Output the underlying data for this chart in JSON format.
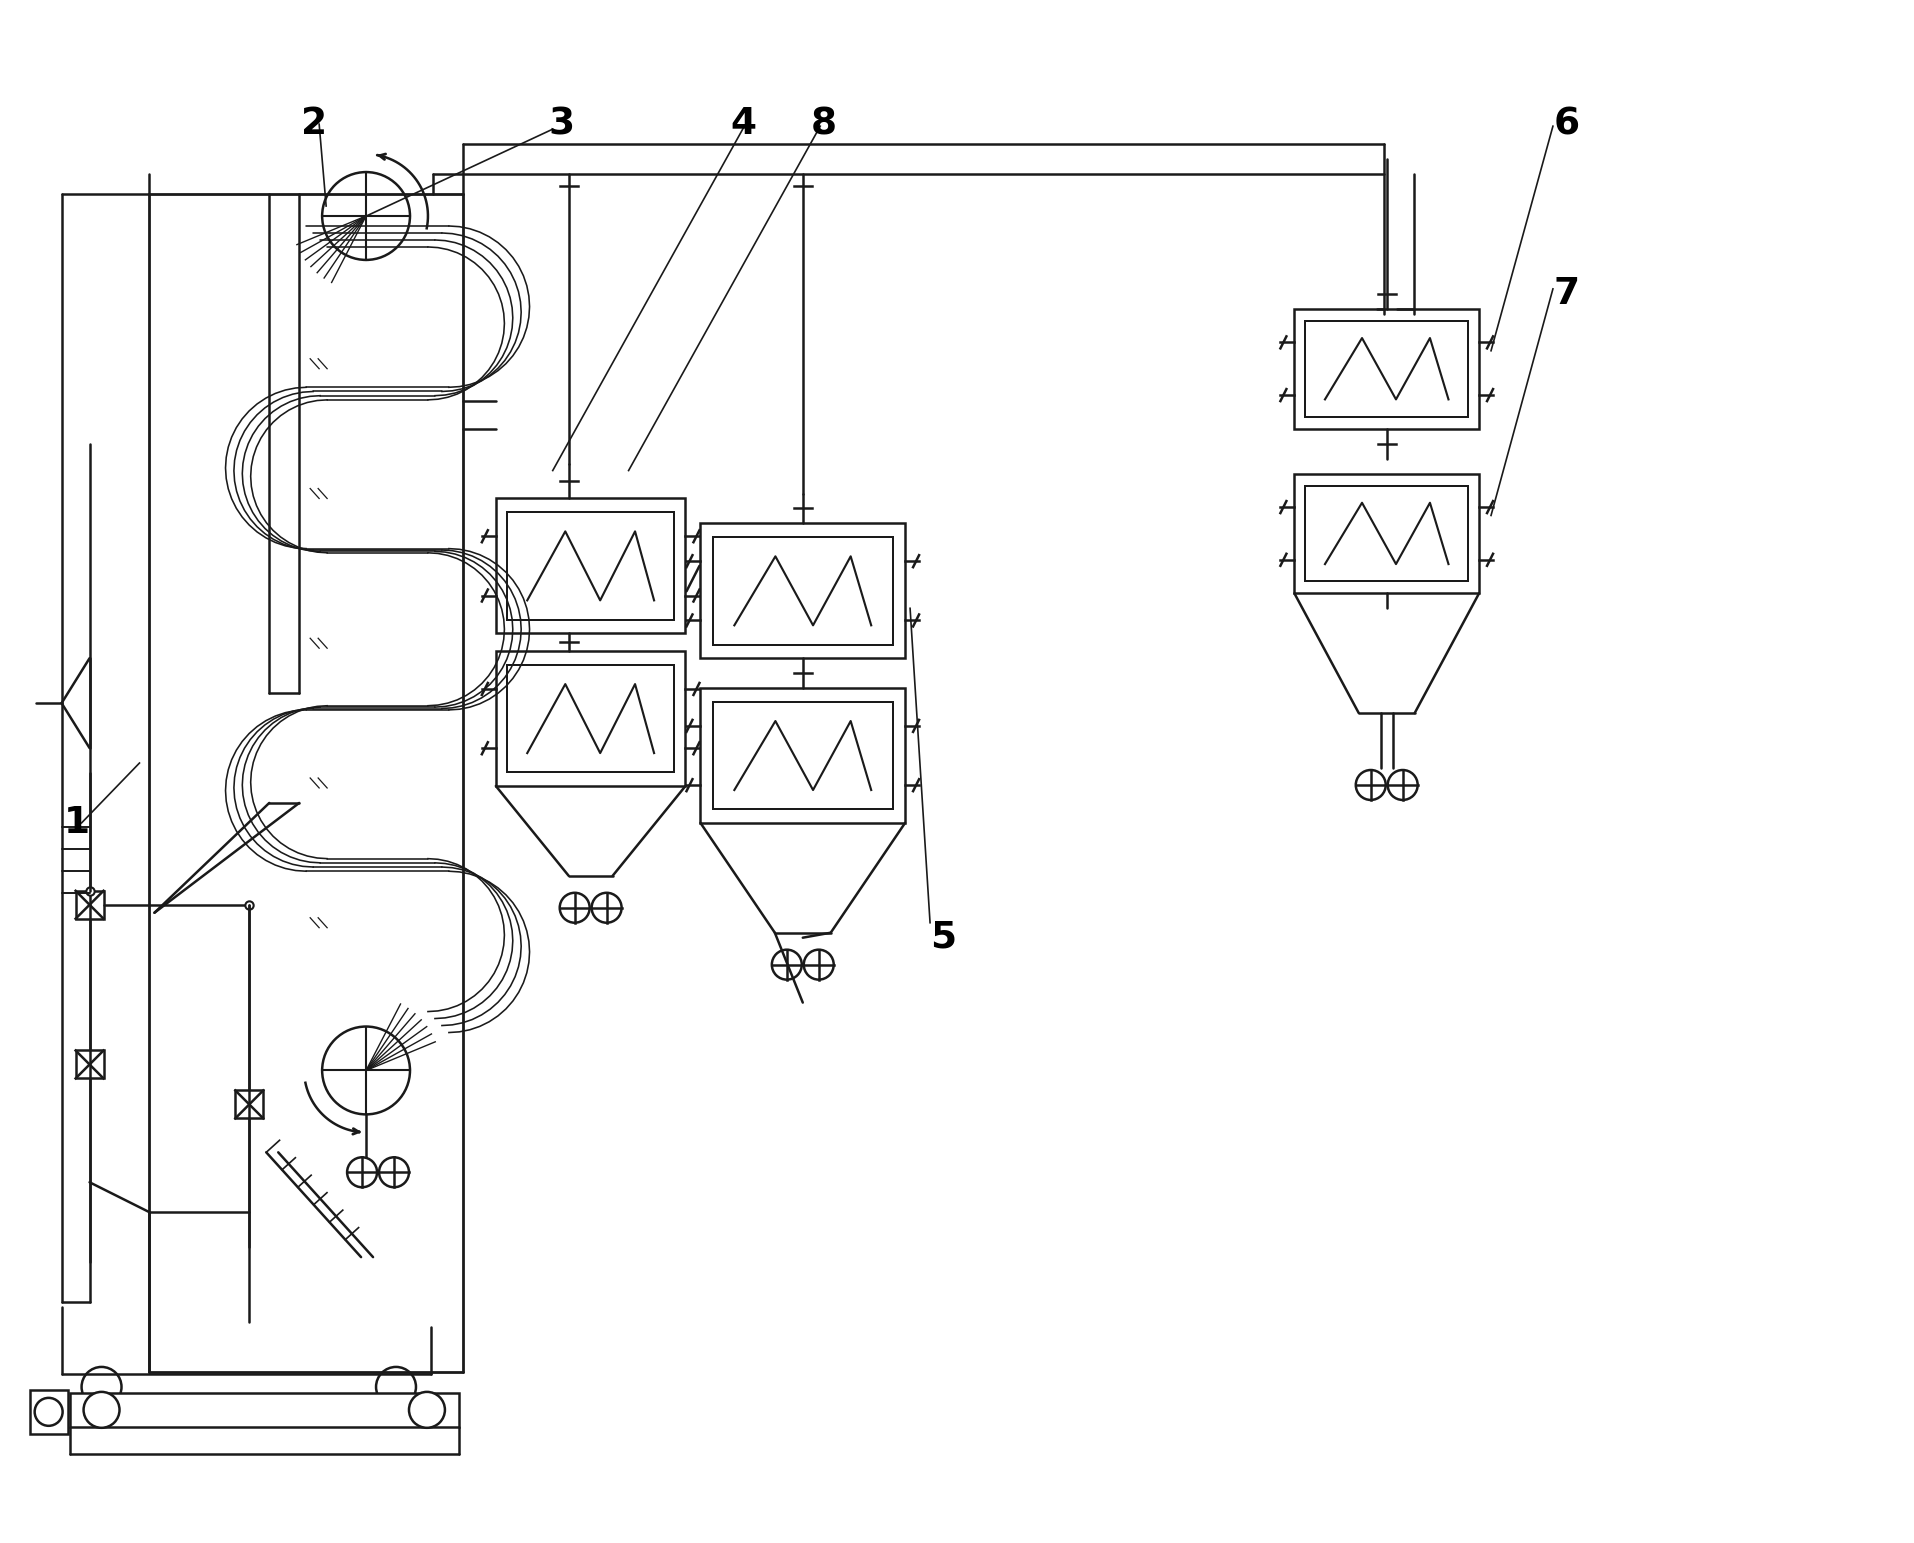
{
  "bg_color": "#ffffff",
  "line_color": "#1a1a1a",
  "lw": 1.8,
  "fig_width": 19.14,
  "fig_height": 15.43
}
